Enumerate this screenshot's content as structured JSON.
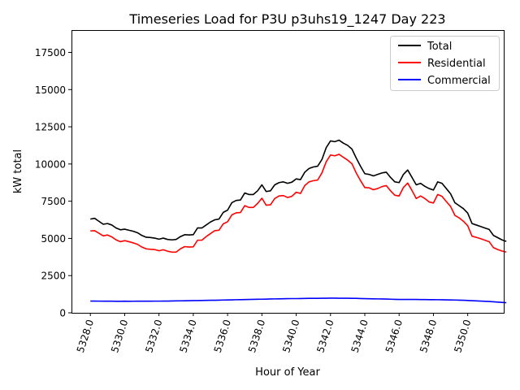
{
  "chart_data": {
    "type": "line",
    "title": "Timeseries Load for P3U p3uhs19_1247  Day 223",
    "xlabel": "Hour of Year",
    "ylabel": "kW total",
    "xlim": [
      5326.9,
      5352.1
    ],
    "ylim": [
      0,
      19000
    ],
    "xticks": [
      5328,
      5330,
      5332,
      5334,
      5336,
      5338,
      5340,
      5342,
      5344,
      5346,
      5348,
      5350
    ],
    "xtick_labels": [
      "5328.0",
      "5330.0",
      "5332.0",
      "5334.0",
      "5336.0",
      "5338.0",
      "5340.0",
      "5342.0",
      "5344.0",
      "5346.0",
      "5348.0",
      "5350.0"
    ],
    "yticks": [
      0,
      2500,
      5000,
      7500,
      10000,
      12500,
      15000,
      17500
    ],
    "ytick_labels": [
      "0",
      "2500",
      "5000",
      "7500",
      "10000",
      "12500",
      "15000",
      "17500"
    ],
    "legend_position": "top-right",
    "x_start": 5328,
    "x_step": 0.25,
    "series": [
      {
        "name": "Total",
        "color": "#000000",
        "values": [
          6300,
          6350,
          6150,
          5950,
          6000,
          5900,
          5700,
          5580,
          5620,
          5550,
          5480,
          5380,
          5200,
          5080,
          5060,
          5020,
          4950,
          5020,
          4930,
          4900,
          4930,
          5120,
          5250,
          5230,
          5250,
          5700,
          5700,
          5900,
          6100,
          6250,
          6300,
          6750,
          6900,
          7400,
          7550,
          7580,
          8050,
          7950,
          7950,
          8200,
          8600,
          8150,
          8200,
          8600,
          8750,
          8800,
          8700,
          8780,
          9000,
          8950,
          9450,
          9700,
          9800,
          9850,
          10300,
          11100,
          11550,
          11500,
          11600,
          11400,
          11250,
          11000,
          10400,
          9850,
          9350,
          9300,
          9200,
          9300,
          9400,
          9450,
          9100,
          8800,
          8750,
          9300,
          9600,
          9100,
          8600,
          8700,
          8500,
          8350,
          8250,
          8800,
          8700,
          8350,
          8000,
          7400,
          7200,
          7000,
          6700,
          6000,
          5900,
          5800,
          5700,
          5600,
          5200,
          5050,
          4900,
          4800
        ]
      },
      {
        "name": "Residential",
        "color": "#ff0000",
        "values": [
          5500,
          5520,
          5350,
          5170,
          5230,
          5100,
          4900,
          4780,
          4850,
          4780,
          4700,
          4600,
          4420,
          4300,
          4270,
          4250,
          4170,
          4240,
          4140,
          4080,
          4080,
          4300,
          4450,
          4420,
          4430,
          4880,
          4880,
          5120,
          5320,
          5520,
          5550,
          5980,
          6120,
          6580,
          6720,
          6740,
          7200,
          7080,
          7080,
          7350,
          7700,
          7230,
          7260,
          7680,
          7850,
          7880,
          7750,
          7830,
          8100,
          8020,
          8550,
          8800,
          8880,
          8920,
          9400,
          10150,
          10600,
          10550,
          10650,
          10450,
          10260,
          10020,
          9400,
          8880,
          8420,
          8400,
          8270,
          8350,
          8480,
          8550,
          8200,
          7900,
          7850,
          8420,
          8720,
          8220,
          7680,
          7850,
          7680,
          7450,
          7380,
          7950,
          7830,
          7480,
          7150,
          6550,
          6380,
          6150,
          5850,
          5150,
          5070,
          4980,
          4880,
          4780,
          4380,
          4250,
          4150,
          4080
        ]
      },
      {
        "name": "Commercial",
        "color": "#0000ff",
        "values": [
          790,
          790,
          785,
          780,
          780,
          780,
          775,
          775,
          780,
          775,
          778,
          780,
          780,
          780,
          782,
          785,
          785,
          787,
          790,
          795,
          800,
          805,
          810,
          815,
          820,
          825,
          830,
          835,
          840,
          845,
          850,
          860,
          865,
          870,
          880,
          885,
          890,
          900,
          905,
          910,
          915,
          920,
          930,
          935,
          940,
          945,
          950,
          955,
          955,
          960,
          965,
          970,
          975,
          975,
          978,
          980,
          985,
          985,
          980,
          980,
          978,
          975,
          970,
          960,
          950,
          945,
          940,
          935,
          930,
          925,
          915,
          905,
          900,
          895,
          895,
          895,
          895,
          890,
          890,
          885,
          885,
          880,
          875,
          870,
          865,
          860,
          850,
          840,
          830,
          815,
          800,
          790,
          775,
          760,
          740,
          720,
          700,
          680
        ]
      }
    ]
  }
}
